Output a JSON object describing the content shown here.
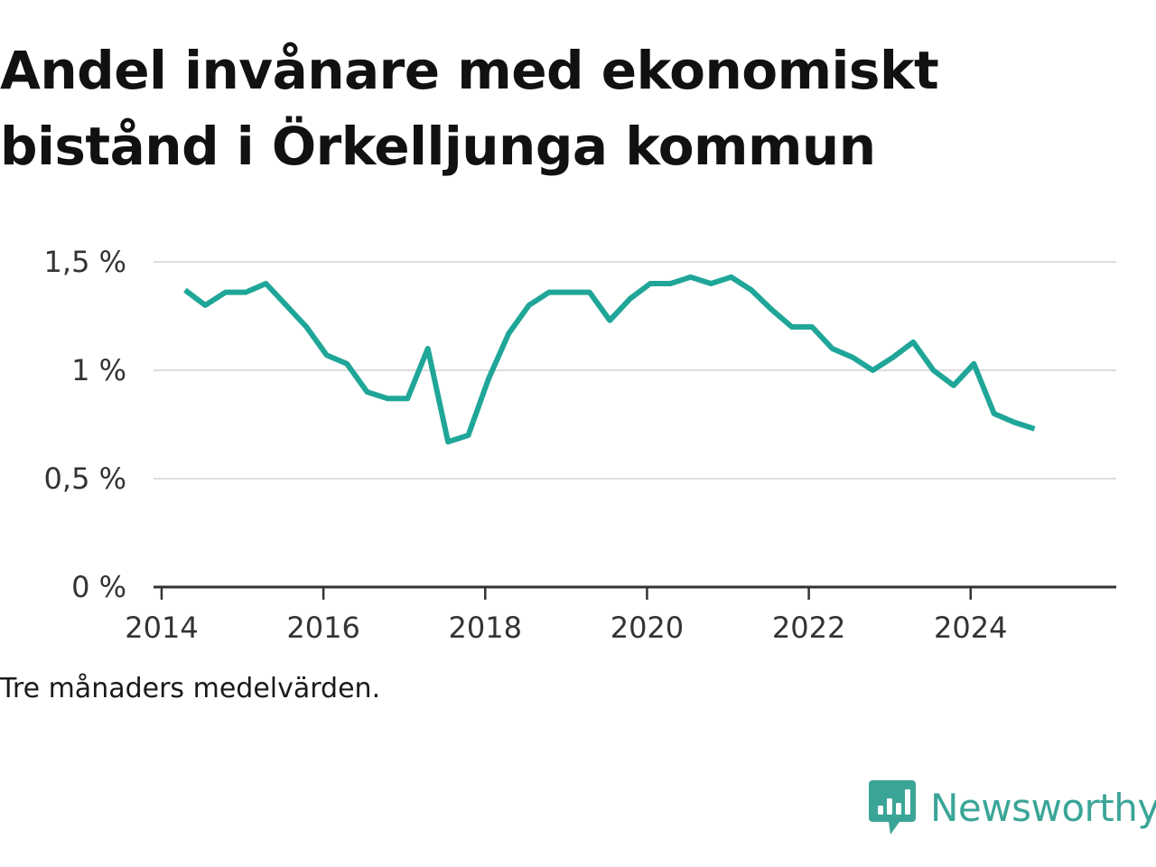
{
  "title": "Andel invånare med ekonomiskt bistånd i Örkelljunga kommun",
  "footnote": "Tre månaders medelvärden.",
  "brand": {
    "name": "Newsworthy",
    "icon": "newsworthy-logo-icon",
    "color": "#3aa597"
  },
  "colors": {
    "line": "#1fa698",
    "grid": "#dddddd",
    "axis": "#333333"
  },
  "chart_data": {
    "type": "line",
    "title": "Andel invånare med ekonomiskt bistånd i Örkelljunga kommun",
    "xlabel": "",
    "ylabel": "",
    "grid": true,
    "legend": "none",
    "xlim": [
      2013.9,
      2025.8
    ],
    "ylim": [
      0,
      1.5
    ],
    "x_ticks": [
      2014,
      2016,
      2018,
      2020,
      2022,
      2024
    ],
    "x_tick_labels": [
      "2014",
      "2016",
      "2018",
      "2020",
      "2022",
      "2024"
    ],
    "y_ticks": [
      0,
      0.5,
      1,
      1.5
    ],
    "y_tick_labels": [
      "0 %",
      "0,5 %",
      "1 %",
      "1,5 %"
    ],
    "series": [
      {
        "x": [
          2014.29,
          2014.54,
          2014.79,
          2015.04,
          2015.29,
          2015.54,
          2015.79,
          2016.04,
          2016.29,
          2016.54,
          2016.79,
          2017.04,
          2017.29,
          2017.54,
          2017.79,
          2018.04,
          2018.29,
          2018.54,
          2018.79,
          2019.04,
          2019.29,
          2019.54,
          2019.79,
          2020.04,
          2020.29,
          2020.54,
          2020.79,
          2021.04,
          2021.29,
          2021.54,
          2021.79,
          2022.04,
          2022.29,
          2022.54,
          2022.79,
          2023.04,
          2023.29,
          2023.54,
          2023.79,
          2024.04,
          2024.29,
          2024.54,
          2024.79
        ],
        "values": [
          1.37,
          1.3,
          1.36,
          1.36,
          1.4,
          1.3,
          1.2,
          1.07,
          1.03,
          0.9,
          0.87,
          0.87,
          1.1,
          0.67,
          0.7,
          0.96,
          1.17,
          1.3,
          1.36,
          1.36,
          1.36,
          1.23,
          1.33,
          1.4,
          1.4,
          1.43,
          1.4,
          1.43,
          1.37,
          1.28,
          1.2,
          1.2,
          1.1,
          1.06,
          1.0,
          1.06,
          1.13,
          1.0,
          0.93,
          1.03,
          0.8,
          0.76,
          0.73
        ]
      }
    ]
  }
}
